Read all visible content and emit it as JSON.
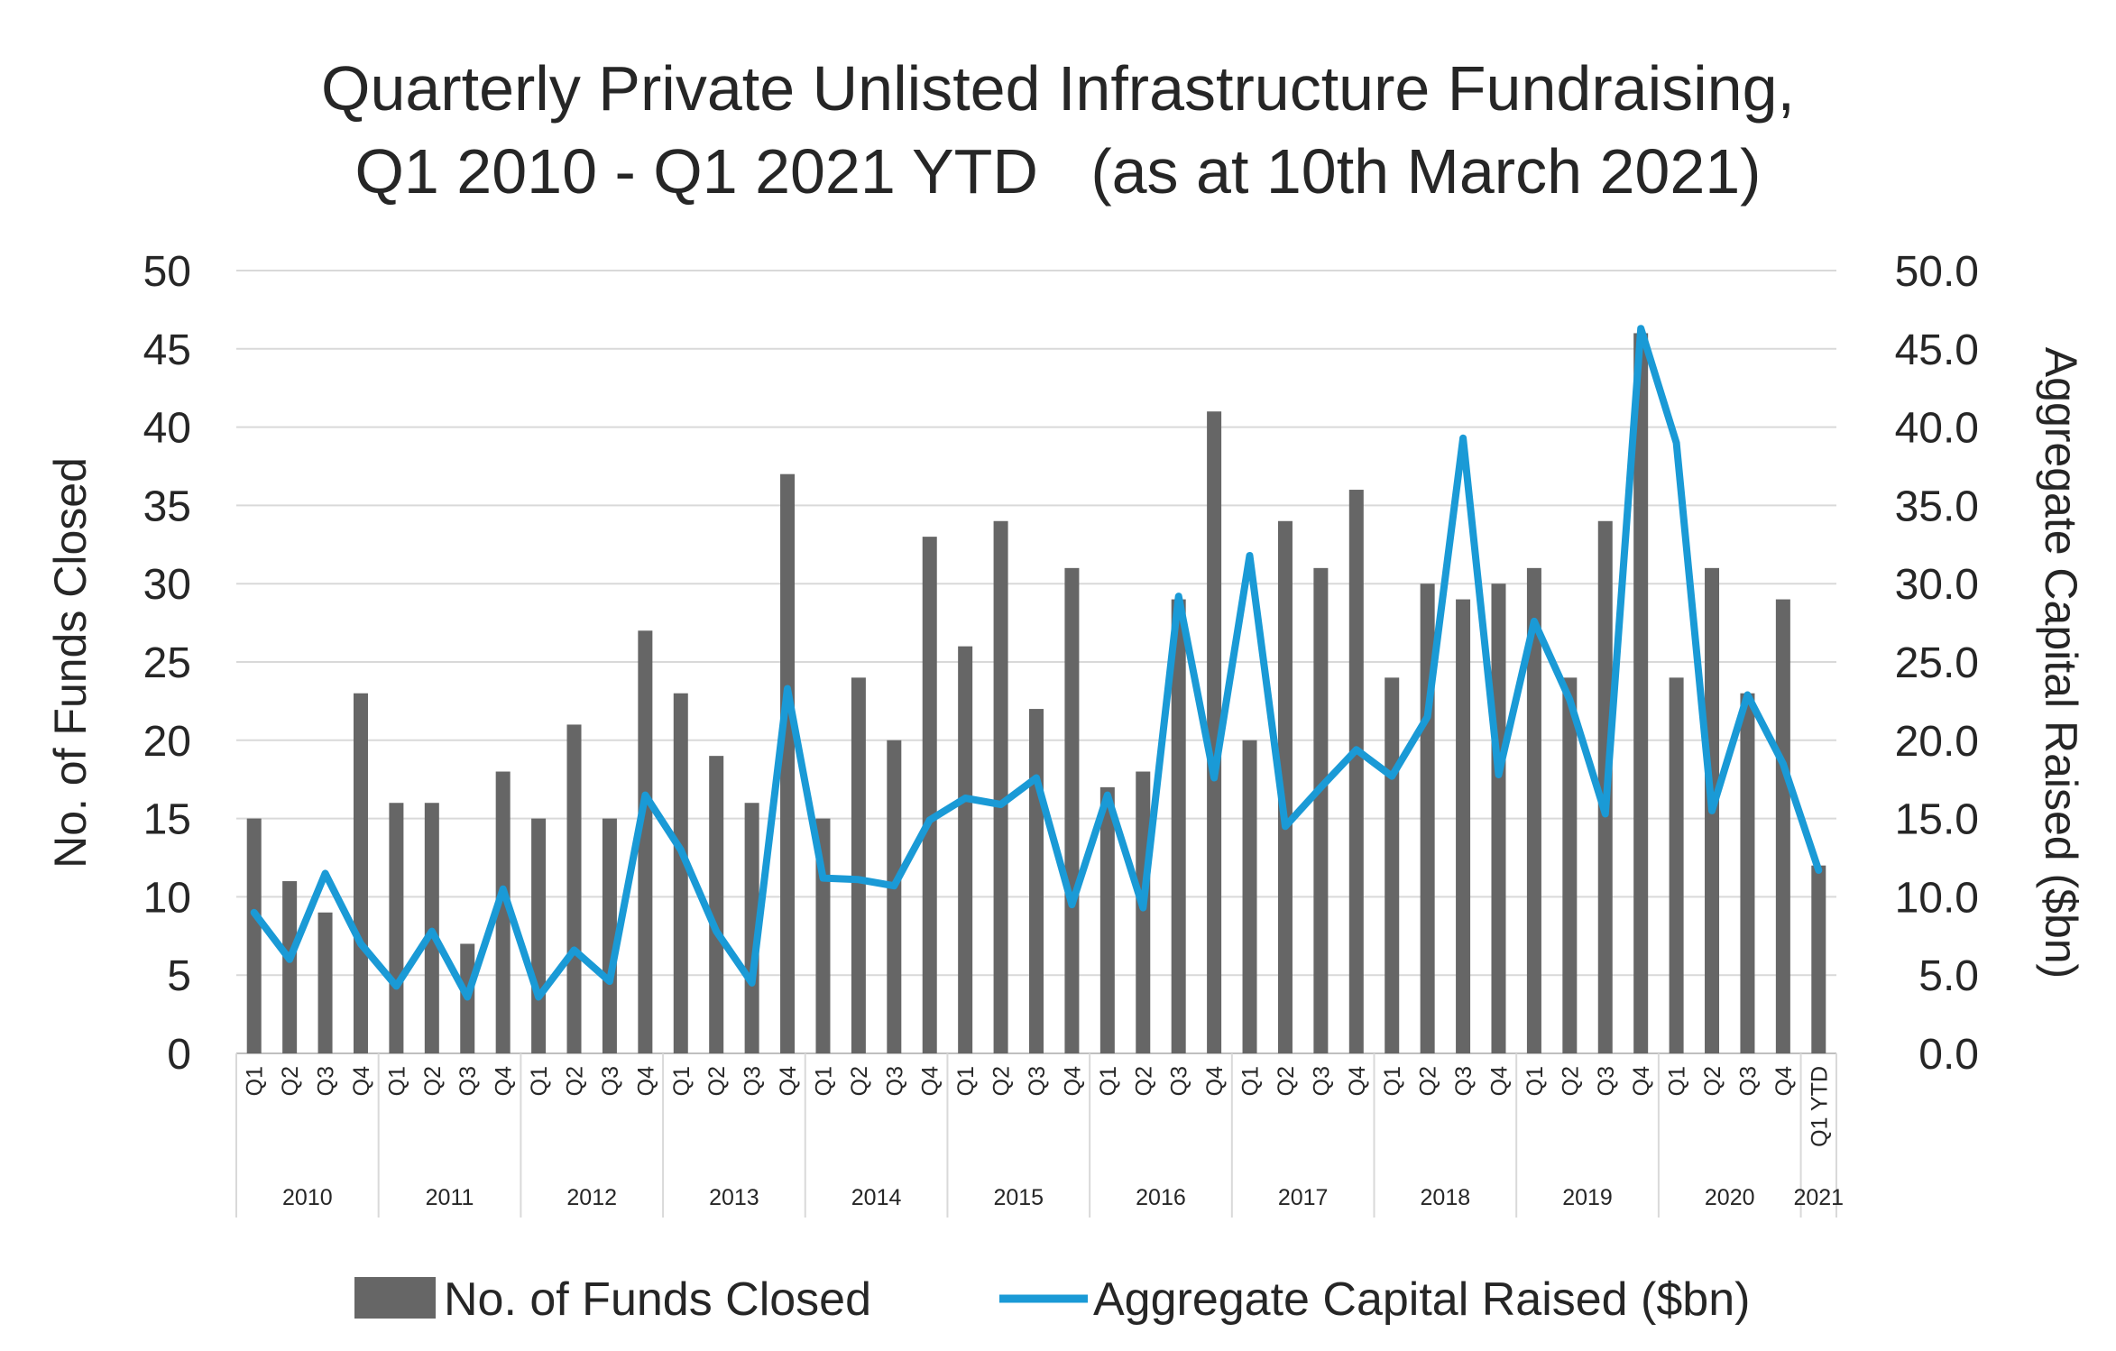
{
  "chart_data": {
    "type": "bar",
    "title_lines": [
      "Quarterly Private Unlisted Infrastructure Fundraising,",
      "Q1 2010 - Q1 2021 YTD   (as at 10th March 2021)"
    ],
    "ylabel_left": "No. of Funds Closed",
    "ylabel_right": "Aggregate Capital Raised ($bn)",
    "ylim_left": [
      0,
      50
    ],
    "ylim_right": [
      0,
      50
    ],
    "yticks_left": [
      "0",
      "5",
      "10",
      "15",
      "20",
      "25",
      "30",
      "35",
      "40",
      "45",
      "50"
    ],
    "yticks_right": [
      "0.0",
      "5.0",
      "10.0",
      "15.0",
      "20.0",
      "25.0",
      "30.0",
      "35.0",
      "40.0",
      "45.0",
      "50.0"
    ],
    "grid": true,
    "legend_position": "bottom",
    "quarters": [
      "Q1",
      "Q2",
      "Q3",
      "Q4",
      "Q1",
      "Q2",
      "Q3",
      "Q4",
      "Q1",
      "Q2",
      "Q3",
      "Q4",
      "Q1",
      "Q2",
      "Q3",
      "Q4",
      "Q1",
      "Q2",
      "Q3",
      "Q4",
      "Q1",
      "Q2",
      "Q3",
      "Q4",
      "Q1",
      "Q2",
      "Q3",
      "Q4",
      "Q1",
      "Q2",
      "Q3",
      "Q4",
      "Q1",
      "Q2",
      "Q3",
      "Q4",
      "Q1",
      "Q2",
      "Q3",
      "Q4",
      "Q1",
      "Q2",
      "Q3",
      "Q4",
      "Q1 YTD"
    ],
    "years": [
      {
        "label": "2010",
        "span": 4
      },
      {
        "label": "2011",
        "span": 4
      },
      {
        "label": "2012",
        "span": 4
      },
      {
        "label": "2013",
        "span": 4
      },
      {
        "label": "2014",
        "span": 4
      },
      {
        "label": "2015",
        "span": 4
      },
      {
        "label": "2016",
        "span": 4
      },
      {
        "label": "2017",
        "span": 4
      },
      {
        "label": "2018",
        "span": 4
      },
      {
        "label": "2019",
        "span": 4
      },
      {
        "label": "2020",
        "span": 4
      },
      {
        "label": "2021",
        "span": 1
      }
    ],
    "series": [
      {
        "name": "No. of Funds Closed",
        "type": "bar",
        "axis": "left",
        "color": "#666666",
        "values": [
          15,
          11,
          9,
          23,
          16,
          16,
          7,
          18,
          15,
          21,
          15,
          27,
          23,
          19,
          16,
          37,
          15,
          24,
          20,
          33,
          26,
          34,
          22,
          31,
          17,
          18,
          29,
          41,
          20,
          34,
          31,
          36,
          24,
          30,
          29,
          30,
          31,
          24,
          34,
          46,
          24,
          31,
          23,
          29,
          12
        ]
      },
      {
        "name": "Aggregate Capital Raised ($bn)",
        "type": "line",
        "axis": "right",
        "color": "#1a9ad6",
        "values": [
          9.0,
          6.0,
          11.5,
          7.0,
          4.3,
          7.8,
          3.6,
          10.5,
          3.6,
          6.6,
          4.6,
          16.5,
          13.0,
          7.8,
          4.5,
          23.3,
          11.2,
          11.1,
          10.7,
          14.9,
          16.3,
          15.9,
          17.6,
          9.5,
          16.5,
          9.3,
          29.2,
          17.6,
          31.8,
          14.5,
          17.0,
          19.4,
          17.7,
          21.5,
          39.3,
          17.8,
          27.6,
          22.6,
          15.3,
          46.3,
          39.0,
          15.5,
          22.9,
          18.5,
          11.7
        ]
      }
    ]
  }
}
